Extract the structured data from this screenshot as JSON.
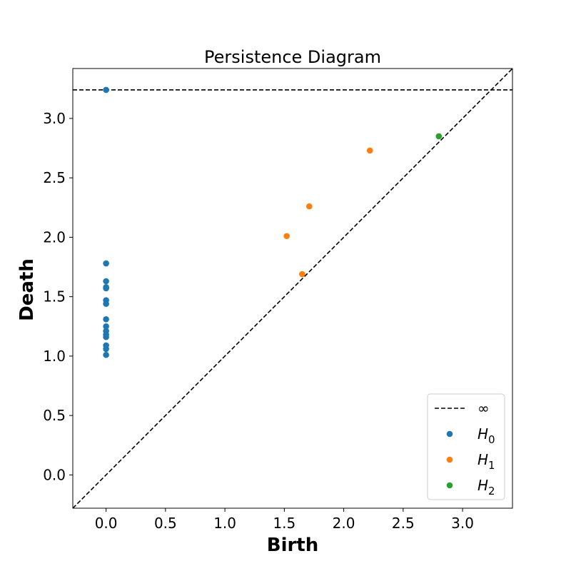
{
  "chart_data": {
    "type": "scatter",
    "title": "Persistence Diagram",
    "xlabel": "Birth",
    "ylabel": "Death",
    "xlim": [
      -0.28,
      3.42
    ],
    "ylim": [
      -0.28,
      3.42
    ],
    "xticks": [
      "0.0",
      "0.5",
      "1.0",
      "1.5",
      "2.0",
      "2.5",
      "3.0"
    ],
    "yticks": [
      "0.0",
      "0.5",
      "1.0",
      "1.5",
      "2.0",
      "2.5",
      "3.0"
    ],
    "xtick_values": [
      0,
      0.5,
      1,
      1.5,
      2,
      2.5,
      3
    ],
    "ytick_values": [
      0,
      0.5,
      1,
      1.5,
      2,
      2.5,
      3
    ],
    "grid": false,
    "legend_position": "bottom-right",
    "infinity_line": {
      "label": "∞",
      "y": 3.24,
      "color": "#000000",
      "style": "dashed"
    },
    "diagonal": {
      "style": "dashed",
      "color": "#000000"
    },
    "series": [
      {
        "name": "H",
        "subscript": "0",
        "color": "#1f77b4",
        "points": [
          [
            0,
            3.24
          ],
          [
            0,
            1.78
          ],
          [
            0,
            1.63
          ],
          [
            0,
            1.58
          ],
          [
            0,
            1.57
          ],
          [
            0,
            1.47
          ],
          [
            0,
            1.44
          ],
          [
            0,
            1.31
          ],
          [
            0,
            1.25
          ],
          [
            0,
            1.21
          ],
          [
            0,
            1.18
          ],
          [
            0,
            1.16
          ],
          [
            0,
            1.09
          ],
          [
            0,
            1.06
          ],
          [
            0,
            1.01
          ]
        ]
      },
      {
        "name": "H",
        "subscript": "1",
        "color": "#ff7f0e",
        "points": [
          [
            1.52,
            2.01
          ],
          [
            1.71,
            2.26
          ],
          [
            1.65,
            1.69
          ],
          [
            2.22,
            2.73
          ]
        ]
      },
      {
        "name": "H",
        "subscript": "2",
        "color": "#2ca02c",
        "points": [
          [
            2.8,
            2.85
          ]
        ]
      }
    ]
  }
}
